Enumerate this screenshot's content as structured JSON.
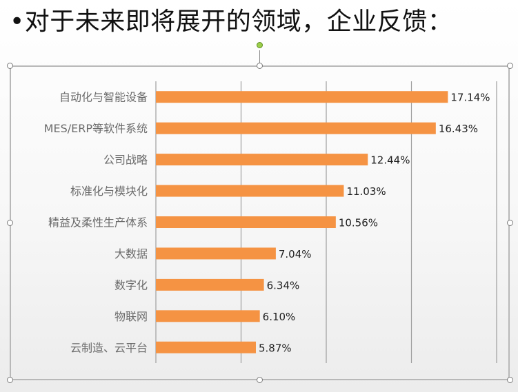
{
  "slide": {
    "title": "•对于未来即将展开的领域，企业反馈："
  },
  "chart_data": {
    "type": "bar",
    "orientation": "horizontal",
    "categories": [
      "自动化与智能设备",
      "MES/ERP等软件系统",
      "公司战略",
      "标准化与模块化",
      "精益及柔性生产体系",
      "大数据",
      "数字化",
      "物联网",
      "云制造、云平台"
    ],
    "values": [
      17.14,
      16.43,
      12.44,
      11.03,
      10.56,
      7.04,
      6.34,
      6.1,
      5.87
    ],
    "value_labels": [
      "17.14%",
      "16.43%",
      "12.44%",
      "11.03%",
      "10.56%",
      "7.04%",
      "6.34%",
      "6.10%",
      "5.87%"
    ],
    "unit": "%",
    "xlim": [
      0,
      20
    ],
    "x_gridlines": [
      0,
      5,
      10,
      15,
      20
    ],
    "grid": true,
    "bar_color": "#f59343",
    "grid_color": "#9e9e9e",
    "label_color": "#6b6b6b",
    "value_label_color": "#202020",
    "legend": false
  },
  "selection": {
    "handle_icon": "circle-handle-icon",
    "rotate_icon": "green-rotate-handle-icon"
  }
}
